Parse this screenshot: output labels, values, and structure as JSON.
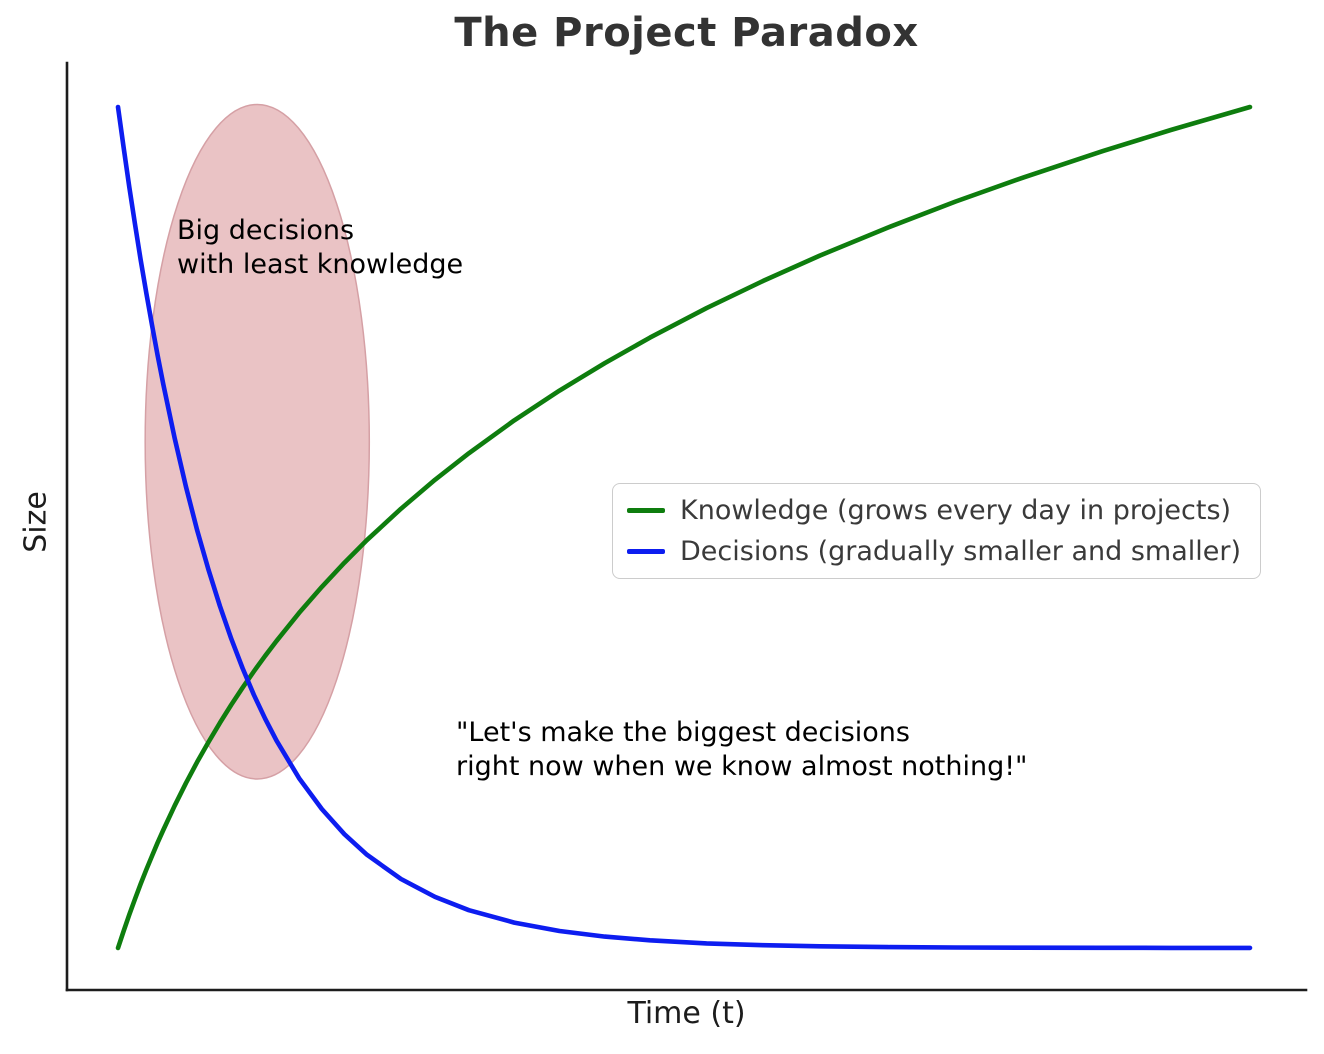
{
  "chart": {
    "title": "The Project Paradox",
    "xlabel": "Time (t)",
    "ylabel": "Size"
  },
  "chart_data": {
    "type": "line",
    "title": "The Project Paradox",
    "xlabel": "Time (t)",
    "ylabel": "Size",
    "x_range": [
      0,
      1
    ],
    "y_range": [
      0,
      1
    ],
    "grid": false,
    "ticks": "none",
    "spines": [
      "left",
      "bottom"
    ],
    "legend_position": "center-right",
    "x": [
      0,
      0.005,
      0.01,
      0.015,
      0.02,
      0.025,
      0.03,
      0.035,
      0.04,
      0.05,
      0.06,
      0.07,
      0.08,
      0.09,
      0.1,
      0.11,
      0.12,
      0.13,
      0.14,
      0.16,
      0.18,
      0.2,
      0.22,
      0.25,
      0.28,
      0.31,
      0.35,
      0.39,
      0.43,
      0.47,
      0.52,
      0.57,
      0.62,
      0.68,
      0.74,
      0.8,
      0.87,
      0.93,
      1
    ],
    "series": [
      {
        "name": "knowledge",
        "label": "Knowledge (grows every day in projects)",
        "color": "#0e7d0e",
        "values": [
          0,
          0.0203,
          0.0397,
          0.0583,
          0.076,
          0.0931,
          0.1094,
          0.1252,
          0.1403,
          0.1691,
          0.196,
          0.2213,
          0.2451,
          0.2677,
          0.2891,
          0.3094,
          0.3288,
          0.3474,
          0.3651,
          0.3985,
          0.4294,
          0.4582,
          0.4851,
          0.5224,
          0.5567,
          0.5884,
          0.6273,
          0.6628,
          0.6955,
          0.7258,
          0.7609,
          0.7932,
          0.8233,
          0.8566,
          0.8876,
          0.9163,
          0.9476,
          0.9726,
          1
        ]
      },
      {
        "name": "decisions",
        "label": "Decisions (gradually smaller and smaller)",
        "color": "#0d1df0",
        "values": [
          1,
          0.9512,
          0.9048,
          0.8607,
          0.8187,
          0.7788,
          0.7408,
          0.7047,
          0.6703,
          0.6065,
          0.5488,
          0.4966,
          0.4493,
          0.4066,
          0.3679,
          0.3329,
          0.3012,
          0.2725,
          0.2466,
          0.2019,
          0.1653,
          0.1353,
          0.1108,
          0.0821,
          0.0608,
          0.045,
          0.0302,
          0.0202,
          0.0136,
          0.0091,
          0.0055,
          0.0033,
          0.002,
          0.0011,
          0.0006,
          0.0003,
          0.0002,
          0.0001,
          0.0001
        ]
      }
    ],
    "annotations": {
      "highlight_ellipse": {
        "cx": 0.123,
        "cy": 0.602,
        "rx": 0.099,
        "ry": 0.401,
        "fill": "#eac3c5",
        "stroke": "#d5a0a5"
      },
      "big_decisions": {
        "line1": "Big decisions",
        "line2": "with least knowledge"
      },
      "quote": {
        "line1": "\"Let's make the biggest decisions",
        "line2": "right now when we know almost nothing!\""
      }
    }
  }
}
